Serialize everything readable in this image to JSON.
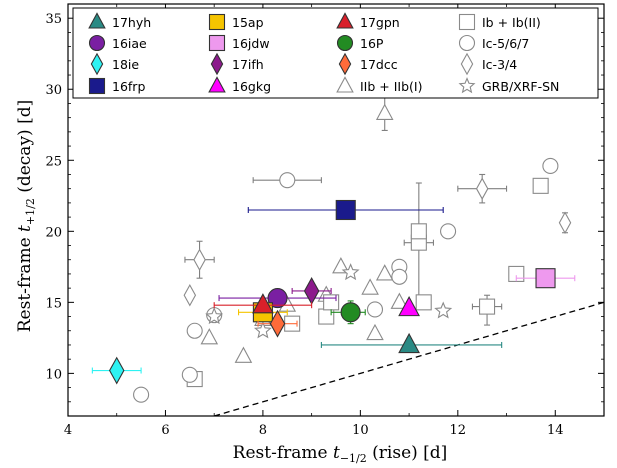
{
  "chart_data": {
    "type": "scatter",
    "xlabel": "Rest-frame t−½ (rise) [d]",
    "xlabel_main": "Rest-frame ",
    "xlabel_sub": "−1/2",
    "xlabel_rest": " (rise) [d]",
    "ylabel_main": "Rest-frame ",
    "ylabel_sub": "+1/2",
    "ylabel_rest": " (decay) [d]",
    "xlim": [
      4,
      15
    ],
    "ylim": [
      7,
      36
    ],
    "xticks": [
      4,
      6,
      8,
      10,
      12,
      14
    ],
    "yticks": [
      10,
      15,
      20,
      25,
      30,
      35
    ],
    "grid": false,
    "legend_position": "top",
    "reference_line": {
      "style": "dashed",
      "points": [
        [
          7.0,
          7.0
        ],
        [
          15.0,
          15.0
        ]
      ]
    },
    "highlighted": [
      {
        "name": "17hyh",
        "marker": "triangle",
        "color": "#2a8a84",
        "x": 11.0,
        "y": 12.0,
        "xerr": [
          1.8,
          1.9
        ],
        "yerr": [
          0,
          0
        ]
      },
      {
        "name": "16iae",
        "marker": "circle",
        "color": "#7a1fa2",
        "x": 8.3,
        "y": 15.3,
        "xerr": [
          1.2,
          1.2
        ],
        "yerr": [
          0.3,
          0.3
        ]
      },
      {
        "name": "18ie",
        "marker": "diamond",
        "color": "#2ef2f2",
        "x": 5.0,
        "y": 10.2,
        "xerr": [
          0.5,
          0.5
        ],
        "yerr": [
          0.3,
          0.3
        ]
      },
      {
        "name": "16frp",
        "marker": "square",
        "color": "#1a1a8c",
        "x": 9.7,
        "y": 21.5,
        "xerr": [
          2.0,
          2.0
        ],
        "yerr": [
          0.3,
          0.3
        ]
      },
      {
        "name": "15ap",
        "marker": "square",
        "color": "#f5c400",
        "x": 8.0,
        "y": 14.3,
        "xerr": [
          0.5,
          0.5
        ],
        "yerr": [
          0.4,
          0.4
        ]
      },
      {
        "name": "16jdw",
        "marker": "square",
        "color": "#ee99ee",
        "x": 13.8,
        "y": 16.7,
        "xerr": [
          0.6,
          0.6
        ],
        "yerr": [
          0.2,
          0.2
        ]
      },
      {
        "name": "17ifh",
        "marker": "diamond",
        "color": "#8c1a8c",
        "x": 9.0,
        "y": 15.8,
        "xerr": [
          0.4,
          0.4
        ],
        "yerr": [
          0.3,
          0.3
        ]
      },
      {
        "name": "16gkg",
        "marker": "triangle",
        "color": "#ff00ff",
        "x": 11.0,
        "y": 14.6,
        "xerr": [
          0,
          0
        ],
        "yerr": [
          0,
          0
        ]
      },
      {
        "name": "17gpn",
        "marker": "triangle",
        "color": "#d9202a",
        "x": 8.0,
        "y": 14.8,
        "xerr": [
          1.0,
          1.0
        ],
        "yerr": [
          0.4,
          0.4
        ]
      },
      {
        "name": "16P",
        "marker": "circle",
        "color": "#228b22",
        "x": 9.8,
        "y": 14.3,
        "xerr": [
          0.4,
          0.3
        ],
        "yerr": [
          0.8,
          0.8
        ]
      },
      {
        "name": "17dcc",
        "marker": "diamond",
        "color": "#ff6b3a",
        "x": 8.3,
        "y": 13.5,
        "xerr": [
          0.4,
          0.4
        ],
        "yerr": [
          0.5,
          0.5
        ]
      }
    ],
    "comparison": [
      {
        "name": "IIb + IIb(I)",
        "marker": "triangle",
        "points": [
          {
            "x": 6.9,
            "y": 12.5
          },
          {
            "x": 7.6,
            "y": 11.2
          },
          {
            "x": 8.0,
            "y": 13.8
          },
          {
            "x": 8.5,
            "y": 14.8
          },
          {
            "x": 9.3,
            "y": 15.5
          },
          {
            "x": 9.6,
            "y": 17.5
          },
          {
            "x": 10.2,
            "y": 16.0
          },
          {
            "x": 10.3,
            "y": 12.8
          },
          {
            "x": 10.5,
            "y": 17.0
          },
          {
            "x": 10.8,
            "y": 15.0
          },
          {
            "x": 10.5,
            "y": 28.3,
            "yerr": [
              1.2,
              1.2
            ]
          }
        ]
      },
      {
        "name": "Ib + Ib(II)",
        "marker": "square",
        "points": [
          {
            "x": 6.6,
            "y": 9.6
          },
          {
            "x": 8.6,
            "y": 13.5
          },
          {
            "x": 9.3,
            "y": 14.0
          },
          {
            "x": 9.4,
            "y": 15.0
          },
          {
            "x": 11.2,
            "y": 19.2,
            "xerr": [
              0.3,
              0.3
            ],
            "yerr": [
              4.2,
              4.2
            ]
          },
          {
            "x": 11.2,
            "y": 20.0
          },
          {
            "x": 11.3,
            "y": 15.0
          },
          {
            "x": 12.6,
            "y": 14.7,
            "xerr": [
              0.3,
              0.3
            ],
            "yerr": [
              1.3,
              0.8
            ]
          },
          {
            "x": 13.2,
            "y": 17.0
          },
          {
            "x": 13.7,
            "y": 23.2
          }
        ]
      },
      {
        "name": "Ic-5/6/7",
        "marker": "circle",
        "points": [
          {
            "x": 5.5,
            "y": 8.5
          },
          {
            "x": 6.5,
            "y": 9.9
          },
          {
            "x": 6.6,
            "y": 13.0
          },
          {
            "x": 7.0,
            "y": 14.1
          },
          {
            "x": 8.5,
            "y": 23.6,
            "xerr": [
              0.7,
              0.7
            ]
          },
          {
            "x": 10.3,
            "y": 14.5
          },
          {
            "x": 10.8,
            "y": 17.5
          },
          {
            "x": 10.8,
            "y": 16.8
          },
          {
            "x": 11.8,
            "y": 20.0
          },
          {
            "x": 13.9,
            "y": 24.6
          }
        ]
      },
      {
        "name": "Ic-3/4",
        "marker": "diamond",
        "points": [
          {
            "x": 6.5,
            "y": 15.5
          },
          {
            "x": 6.7,
            "y": 18.0,
            "xerr": [
              0.3,
              0.3
            ],
            "yerr": [
              1.3,
              1.3
            ]
          },
          {
            "x": 12.5,
            "y": 23.0,
            "xerr": [
              0.5,
              0.5
            ],
            "yerr": [
              1.0,
              1.0
            ]
          },
          {
            "x": 14.2,
            "y": 20.6,
            "yerr": [
              0.7,
              0.7
            ]
          }
        ]
      },
      {
        "name": "GRB/XRF-SN",
        "marker": "star",
        "points": [
          {
            "x": 7.0,
            "y": 14.0
          },
          {
            "x": 8.0,
            "y": 13.0
          },
          {
            "x": 9.8,
            "y": 17.1
          },
          {
            "x": 11.7,
            "y": 14.4
          }
        ]
      }
    ]
  }
}
